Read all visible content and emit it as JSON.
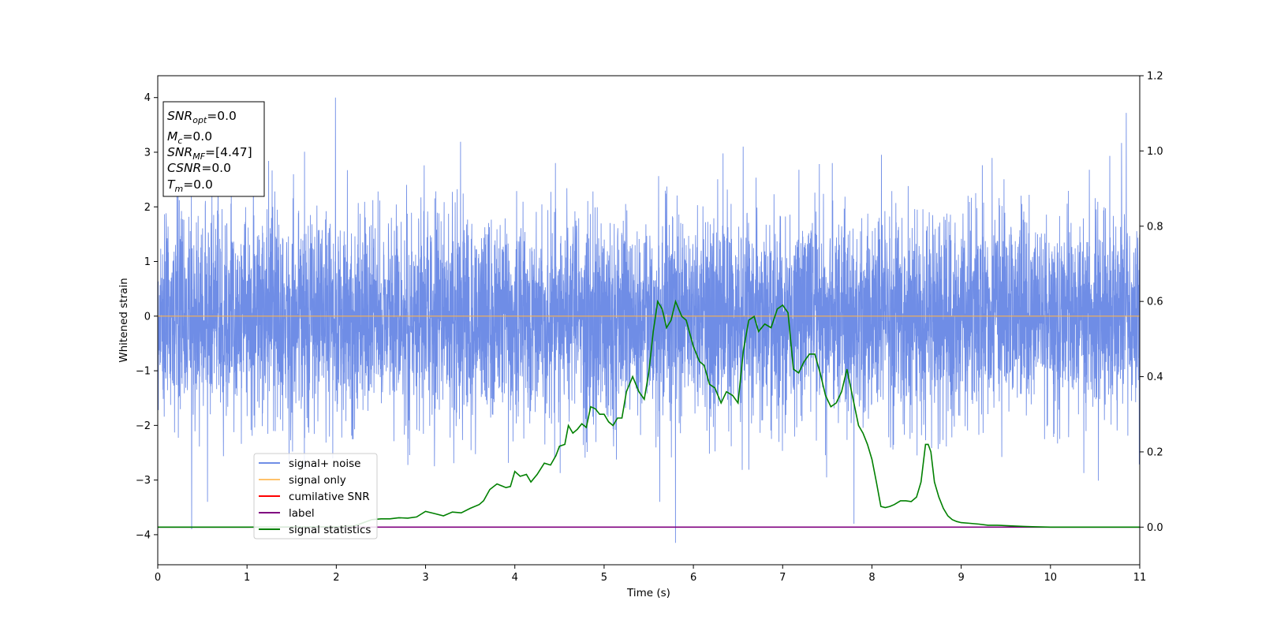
{
  "chart_data": {
    "type": "line",
    "xlabel": "Time (s)",
    "ylabel": "Whitened strain",
    "xlim": [
      0,
      11
    ],
    "ylim": [
      -4.55,
      4.4
    ],
    "y2lim": [
      -0.1,
      1.2
    ],
    "x_ticks": [
      "0",
      "1",
      "2",
      "3",
      "4",
      "5",
      "6",
      "7",
      "8",
      "9",
      "10",
      "11"
    ],
    "y_ticks": [
      "−4",
      "−3",
      "−2",
      "−1",
      "0",
      "1",
      "2",
      "3",
      "4"
    ],
    "y2_ticks": [
      "0.0",
      "0.2",
      "0.4",
      "0.6",
      "0.8",
      "1.0",
      "1.2"
    ],
    "grid": false,
    "legend_position": "lower-left",
    "legend": [
      {
        "label": "signal+ noise",
        "color": "#6f8de6"
      },
      {
        "label": "signal only",
        "color": "#ffc26b"
      },
      {
        "label": "cumilative SNR",
        "color": "#ff0000"
      },
      {
        "label": "label",
        "color": "#800080"
      },
      {
        "label": "signal statistics",
        "color": "#008000"
      }
    ],
    "series": [
      {
        "name": "signal+ noise",
        "axis": "left",
        "color": "#6f8de6",
        "description": "whitened noise, roughly Gaussian with std about 1; spikes reach about +4.0 and -4.15",
        "peaks": [
          {
            "x": 0.38,
            "y": -3.9
          },
          {
            "x": 1.99,
            "y": 4.0
          },
          {
            "x": 5.8,
            "y": -4.15
          },
          {
            "x": 7.8,
            "y": -3.8
          },
          {
            "x": 10.85,
            "y": 3.72
          }
        ]
      },
      {
        "name": "signal only",
        "axis": "left",
        "color": "#ffc26b",
        "x": [
          0,
          11
        ],
        "y": [
          0,
          0
        ]
      },
      {
        "name": "label",
        "axis": "right",
        "color": "#800080",
        "x": [
          0,
          11
        ],
        "y": [
          0,
          0
        ]
      },
      {
        "name": "signal statistics",
        "axis": "right",
        "color": "#008000",
        "x": [
          0,
          1,
          2,
          2.2,
          2.4,
          2.5,
          2.6,
          2.7,
          2.8,
          2.9,
          3.0,
          3.1,
          3.2,
          3.3,
          3.4,
          3.5,
          3.6,
          3.65,
          3.72,
          3.8,
          3.9,
          3.95,
          4.0,
          4.06,
          4.13,
          4.18,
          4.25,
          4.33,
          4.4,
          4.46,
          4.5,
          4.56,
          4.6,
          4.65,
          4.7,
          4.75,
          4.8,
          4.85,
          4.9,
          4.95,
          5.0,
          5.05,
          5.1,
          5.15,
          5.2,
          5.25,
          5.32,
          5.39,
          5.45,
          5.5,
          5.55,
          5.6,
          5.65,
          5.7,
          5.75,
          5.8,
          5.87,
          5.92,
          6.0,
          6.07,
          6.12,
          6.18,
          6.24,
          6.31,
          6.37,
          6.44,
          6.5,
          6.56,
          6.62,
          6.68,
          6.73,
          6.8,
          6.87,
          6.94,
          7.0,
          7.06,
          7.12,
          7.18,
          7.24,
          7.3,
          7.36,
          7.42,
          7.48,
          7.54,
          7.6,
          7.66,
          7.72,
          7.78,
          7.85,
          7.9,
          7.95,
          8.0,
          8.05,
          8.1,
          8.15,
          8.2,
          8.25,
          8.32,
          8.38,
          8.44,
          8.5,
          8.55,
          8.6,
          8.63,
          8.66,
          8.7,
          8.75,
          8.8,
          8.85,
          8.9,
          8.95,
          9.0,
          9.1,
          9.2,
          9.3,
          9.4,
          9.5,
          9.6,
          9.7,
          9.8,
          10.0,
          10.5,
          11.0
        ],
        "y": [
          0.0,
          0.0,
          0.001,
          0.003,
          0.02,
          0.022,
          0.022,
          0.025,
          0.024,
          0.027,
          0.042,
          0.036,
          0.03,
          0.04,
          0.038,
          0.05,
          0.06,
          0.07,
          0.1,
          0.115,
          0.105,
          0.108,
          0.148,
          0.135,
          0.14,
          0.12,
          0.14,
          0.17,
          0.165,
          0.19,
          0.215,
          0.22,
          0.27,
          0.25,
          0.26,
          0.275,
          0.265,
          0.32,
          0.315,
          0.3,
          0.3,
          0.28,
          0.27,
          0.29,
          0.29,
          0.36,
          0.4,
          0.36,
          0.34,
          0.41,
          0.52,
          0.6,
          0.58,
          0.53,
          0.55,
          0.6,
          0.56,
          0.55,
          0.48,
          0.44,
          0.43,
          0.38,
          0.37,
          0.33,
          0.36,
          0.35,
          0.33,
          0.47,
          0.55,
          0.56,
          0.52,
          0.54,
          0.53,
          0.58,
          0.59,
          0.57,
          0.42,
          0.41,
          0.44,
          0.46,
          0.46,
          0.41,
          0.35,
          0.32,
          0.33,
          0.36,
          0.42,
          0.35,
          0.27,
          0.25,
          0.22,
          0.18,
          0.12,
          0.055,
          0.052,
          0.055,
          0.06,
          0.07,
          0.07,
          0.068,
          0.08,
          0.12,
          0.22,
          0.22,
          0.2,
          0.12,
          0.08,
          0.05,
          0.03,
          0.02,
          0.015,
          0.012,
          0.01,
          0.008,
          0.005,
          0.005,
          0.004,
          0.003,
          0.002,
          0.001,
          0.0,
          0.0,
          0.0
        ]
      }
    ]
  },
  "info_box": {
    "snr_opt": {
      "label": "SNR",
      "sub": "opt",
      "value": "=0.0"
    },
    "mc": {
      "label": "M",
      "sub": "c",
      "value": "=0.0"
    },
    "snr_mf": {
      "label": "SNR",
      "sub": "MF",
      "value": "=[4.47]"
    },
    "csnr": {
      "label": "CSNR",
      "value": "=0.0"
    },
    "tm": {
      "label": "T",
      "sub": "m",
      "value": "=0.0"
    }
  }
}
